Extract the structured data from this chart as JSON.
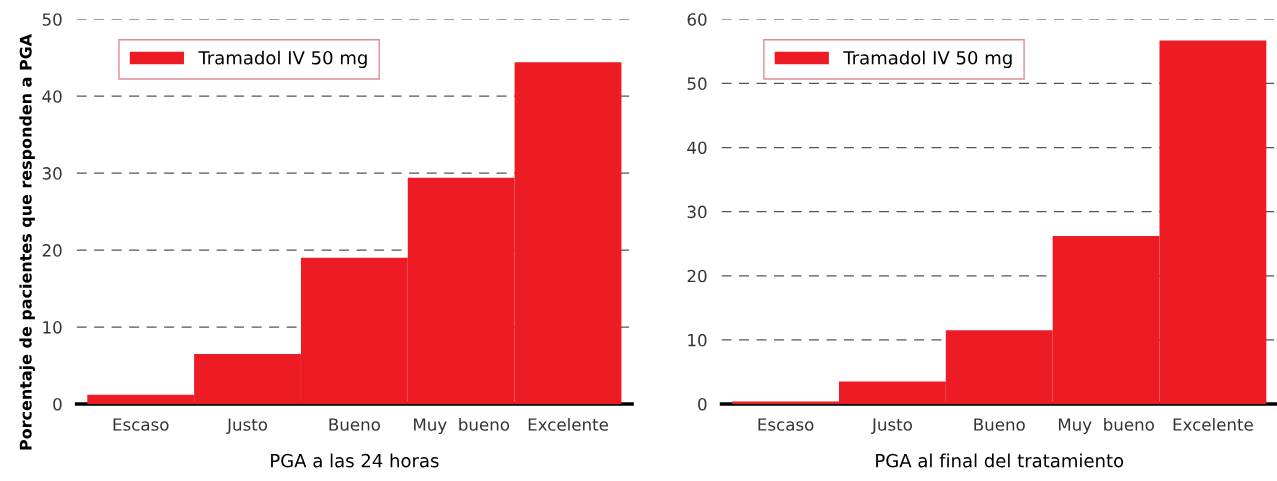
{
  "chart_data": [
    {
      "type": "bar",
      "xlabel": "PGA a las 24 horas",
      "ylabel": "Porcentaje de pacientes que responden a PGA",
      "categories": [
        "Escaso",
        "Justo",
        "Bueno",
        "Muy  bueno",
        "Excelente"
      ],
      "series": [
        {
          "name": "Tramadol IV 50 mg",
          "color": "#ed1c24",
          "values": [
            1.2,
            6.5,
            19.0,
            29.4,
            44.4
          ]
        }
      ],
      "ylim": [
        0,
        50
      ],
      "yticks": [
        0,
        10,
        20,
        30,
        40,
        50
      ],
      "grid": "y",
      "legend": "top left"
    },
    {
      "type": "bar",
      "xlabel": "PGA al final del tratamiento",
      "categories": [
        "Escaso",
        "Justo",
        "Bueno",
        "Muy  bueno",
        "Excelente"
      ],
      "series": [
        {
          "name": "Tramadol IV 50 mg",
          "color": "#ed1c24",
          "values": [
            0.4,
            3.5,
            11.5,
            26.2,
            56.7
          ]
        }
      ],
      "ylim": [
        0,
        60
      ],
      "yticks": [
        0,
        10,
        20,
        30,
        40,
        50,
        60
      ],
      "grid": "y",
      "legend": "top left"
    }
  ]
}
